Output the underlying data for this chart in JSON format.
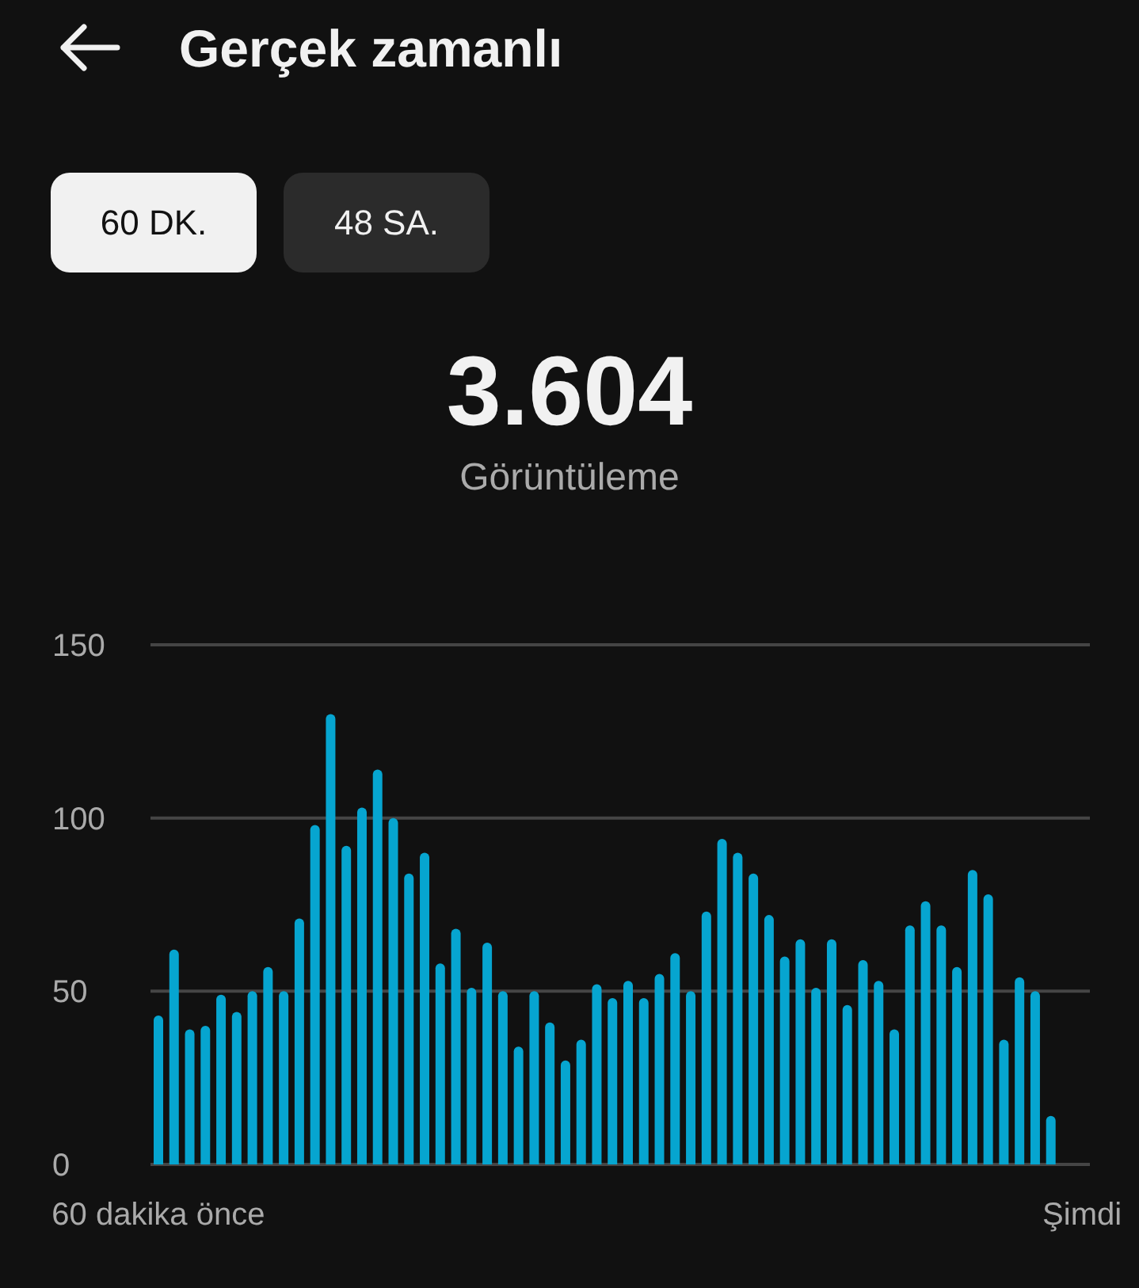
{
  "chart_data": {
    "type": "bar",
    "title": "Gerçek zamanlı",
    "annotations": [
      "60 DK.",
      "48 SA.",
      "3.604",
      "Görüntüleme"
    ],
    "categories": [
      "60 dakika önce",
      null,
      null,
      null,
      null,
      null,
      null,
      null,
      null,
      null,
      null,
      null,
      null,
      null,
      null,
      null,
      null,
      null,
      null,
      null,
      null,
      null,
      null,
      null,
      null,
      null,
      null,
      null,
      null,
      null,
      null,
      null,
      null,
      null,
      null,
      null,
      null,
      null,
      null,
      null,
      null,
      null,
      null,
      null,
      null,
      null,
      null,
      null,
      null,
      null,
      null,
      null,
      null,
      null,
      null,
      null,
      null,
      null,
      null,
      "Şimdi"
    ],
    "values": [
      43,
      62,
      39,
      40,
      49,
      44,
      50,
      57,
      50,
      71,
      98,
      130,
      92,
      103,
      114,
      100,
      84,
      90,
      58,
      68,
      51,
      64,
      50,
      34,
      50,
      41,
      30,
      36,
      52,
      48,
      53,
      48,
      55,
      61,
      50,
      73,
      94,
      90,
      84,
      72,
      60,
      65,
      51,
      65,
      46,
      59,
      53,
      39,
      69,
      76,
      69,
      57,
      85,
      78,
      36,
      54,
      50,
      14,
      null,
      null
    ],
    "color": "#06a5d0",
    "ylim": [
      0,
      150
    ],
    "yticks": [
      0,
      50,
      100,
      150
    ],
    "grid": "y"
  }
}
